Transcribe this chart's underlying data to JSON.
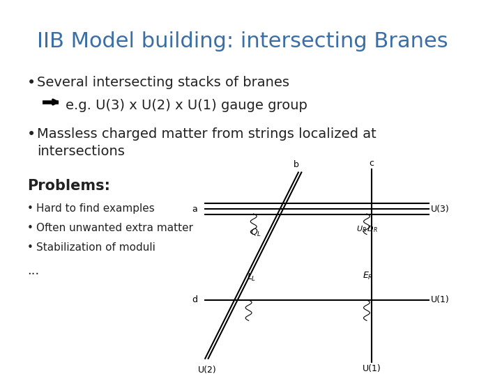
{
  "title": "IIB Model building: intersecting Branes",
  "title_color": "#3a6ea5",
  "title_fontsize": 22,
  "bg_color": "#ffffff",
  "bullet1": "Several intersecting stacks of branes",
  "sub_bullet": "e.g. U(3) x U(2) x U(1) gauge group",
  "bullet2": "Massless charged matter from strings localized at",
  "bullet2b": "intersections",
  "problems_title": "Problems:",
  "problems": [
    "Hard to find examples",
    "Often unwanted extra matter",
    "Stabilization of moduli"
  ],
  "ellipsis": "...",
  "text_color": "#222222",
  "body_fontsize": 13,
  "small_fontsize": 11
}
